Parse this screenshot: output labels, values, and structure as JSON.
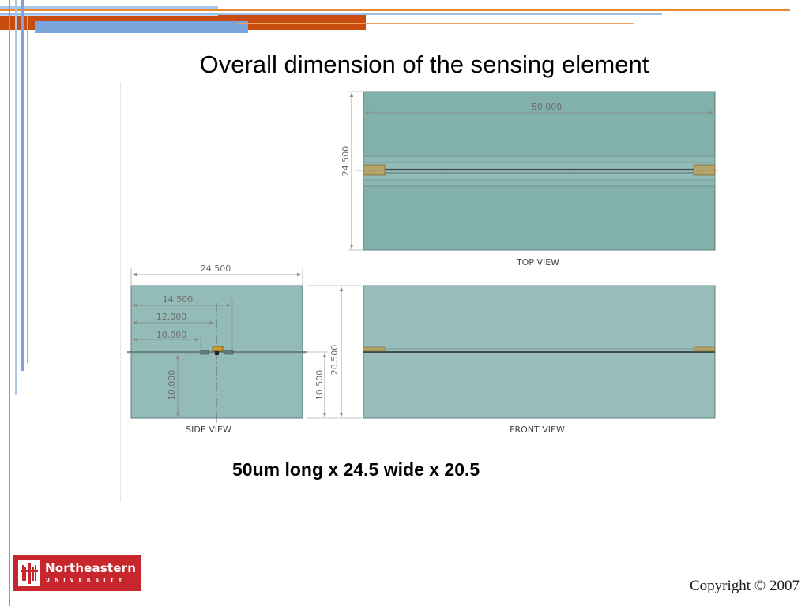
{
  "slide": {
    "title": "Overall dimension of the sensing element",
    "caption": "50um long x 24.5 wide x 20.5",
    "copyright": "Copyright © 2007"
  },
  "logo": {
    "name": "Northeastern",
    "subtitle": "UNIVERSITY"
  },
  "drawing": {
    "top_view": {
      "label": "TOP VIEW",
      "length_dim": "50.000",
      "width_dim": "24.500"
    },
    "side_view": {
      "label": "SIDE VIEW",
      "overall_width_dim": "24.500",
      "dim_14_5": "14.500",
      "dim_12": "12.000",
      "dim_10": "10.000",
      "height_lower_dim": "10.000"
    },
    "front_view": {
      "label": "FRONT VIEW",
      "total_height_dim": "20.500",
      "lower_height_dim": "10.500"
    },
    "colors": {
      "block_fill": "#8fb5b2",
      "block_stroke": "#5f7f7c",
      "dimension_line": "#8a8a8a",
      "electrode": "#b5a46a"
    }
  },
  "decor_colors": {
    "orange": "#e07b23",
    "dark_orange": "#c84e10",
    "light_blue": "#a9c8ec",
    "blue": "#7aa6dd"
  }
}
